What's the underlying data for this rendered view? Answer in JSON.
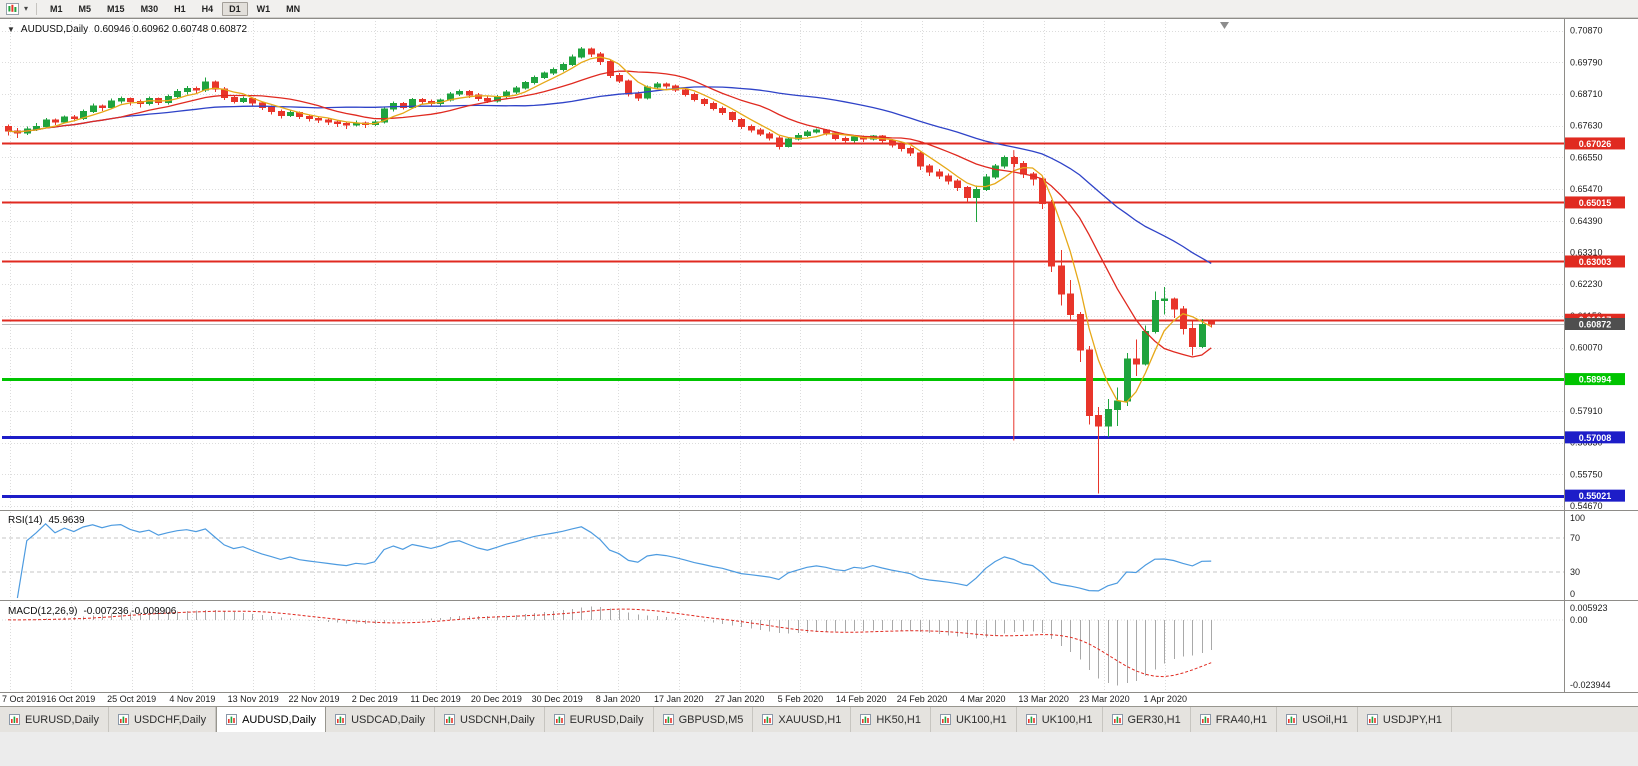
{
  "toolbar": {
    "timeframes": [
      "M1",
      "M5",
      "M15",
      "M30",
      "H1",
      "H4",
      "D1",
      "W1",
      "MN"
    ],
    "active_timeframe": "D1"
  },
  "chart": {
    "title": "AUDUSD,Daily",
    "ohlc_text": "0.60946 0.60962 0.60748 0.60872"
  },
  "rsi_panel": {
    "name": "RSI(14)",
    "value": "45.9639",
    "axis_labels": [
      "100",
      "70",
      "30",
      "0"
    ],
    "level_lines": [
      70,
      30
    ],
    "line_color": "#4d9be0"
  },
  "macd_panel": {
    "name": "MACD(12,26,9)",
    "values": "-0.007236 -0.009906",
    "axis_top": "0.005923",
    "axis_zero": "0.00",
    "axis_bottom": "-0.023944",
    "hist_color": "#a9a9a9",
    "signal_color": "#e02a20"
  },
  "active_tab_index": 2,
  "tabs": [
    {
      "label": "EURUSD,Daily"
    },
    {
      "label": "USDCHF,Daily"
    },
    {
      "label": "AUDUSD,Daily"
    },
    {
      "label": "USDCAD,Daily"
    },
    {
      "label": "USDCNH,Daily"
    },
    {
      "label": "EURUSD,Daily"
    },
    {
      "label": "GBPUSD,M5"
    },
    {
      "label": "XAUUSD,H1"
    },
    {
      "label": "HK50,H1"
    },
    {
      "label": "UK100,H1"
    },
    {
      "label": "UK100,H1"
    },
    {
      "label": "GER30,H1"
    },
    {
      "label": "FRA40,H1"
    },
    {
      "label": "USOil,H1"
    },
    {
      "label": "USDJPY,H1"
    }
  ],
  "chart_data": {
    "type": "candlestick",
    "title": "AUDUSD,Daily",
    "symbol": "AUDUSD",
    "period": "Daily",
    "ylim": [
      0.546,
      0.712
    ],
    "up_color": "#1fa33e",
    "down_color": "#e8352a",
    "grid_color": "#dcdcdc",
    "price_axis_labels": [
      "0.70870",
      "0.69790",
      "0.68710",
      "0.67630",
      "0.66550",
      "0.65470",
      "0.64390",
      "0.63310",
      "0.62230",
      "0.61150",
      "0.60070",
      "0.58990",
      "0.57910",
      "0.56830",
      "0.55750",
      "0.54670"
    ],
    "x_labels": [
      "7 Oct 2019",
      "16 Oct 2019",
      "25 Oct 2019",
      "4 Nov 2019",
      "13 Nov 2019",
      "22 Nov 2019",
      "2 Dec 2019",
      "11 Dec 2019",
      "20 Dec 2019",
      "30 Dec 2019",
      "8 Jan 2020",
      "17 Jan 2020",
      "27 Jan 2020",
      "5 Feb 2020",
      "14 Feb 2020",
      "24 Feb 2020",
      "4 Mar 2020",
      "13 Mar 2020",
      "23 Mar 2020",
      "1 Apr 2020"
    ],
    "levels": [
      {
        "label": "0.67026",
        "value": 0.67026,
        "color": "#e02a20",
        "width": 2
      },
      {
        "label": "0.65015",
        "value": 0.65015,
        "color": "#e02a20",
        "width": 2
      },
      {
        "label": "0.63003",
        "value": 0.63003,
        "color": "#e02a20",
        "width": 2
      },
      {
        "label": "0.61017",
        "value": 0.61017,
        "color": "#e02a20",
        "width": 2
      },
      {
        "label": "0.58994",
        "value": 0.58994,
        "color": "#00c400",
        "width": 3
      },
      {
        "label": "0.57008",
        "value": 0.57008,
        "color": "#1d1dc8",
        "width": 3
      },
      {
        "label": "0.55021",
        "value": 0.55021,
        "color": "#1d1dc8",
        "width": 3
      }
    ],
    "current_price": {
      "label": "0.60872",
      "value": 0.60872,
      "line_color": "#bbbbbb",
      "tag_color": "#4f4f4f"
    },
    "moving_averages": [
      {
        "period": 34,
        "color": "#2f43c8"
      },
      {
        "period": 13,
        "color": "#e02a20"
      },
      {
        "period": 5,
        "color": "#e6a817"
      }
    ],
    "rsi": {
      "period": 14,
      "current": 45.9639
    },
    "macd": {
      "fast": 12,
      "slow": 26,
      "signal": 9,
      "current": -0.007236,
      "current_signal": -0.009906
    },
    "annotations": {
      "vertical_line": {
        "index": 107,
        "price_from": 0.668,
        "price_to": 0.569,
        "color": "#e8352a"
      }
    },
    "candles": [
      [
        0.676,
        0.6768,
        0.673,
        0.6745
      ],
      [
        0.6745,
        0.6755,
        0.6722,
        0.6738
      ],
      [
        0.6738,
        0.676,
        0.6732,
        0.6752
      ],
      [
        0.6752,
        0.6772,
        0.6745,
        0.676
      ],
      [
        0.676,
        0.679,
        0.6755,
        0.6782
      ],
      [
        0.6782,
        0.6788,
        0.6765,
        0.6775
      ],
      [
        0.6775,
        0.6798,
        0.677,
        0.6792
      ],
      [
        0.6792,
        0.68,
        0.6778,
        0.6788
      ],
      [
        0.6788,
        0.6818,
        0.6782,
        0.6812
      ],
      [
        0.6812,
        0.6838,
        0.6806,
        0.683
      ],
      [
        0.683,
        0.6836,
        0.6814,
        0.6825
      ],
      [
        0.6825,
        0.6855,
        0.682,
        0.6848
      ],
      [
        0.6848,
        0.6862,
        0.6838,
        0.6856
      ],
      [
        0.6856,
        0.686,
        0.6832,
        0.6845
      ],
      [
        0.6845,
        0.6852,
        0.6825,
        0.6838
      ],
      [
        0.6838,
        0.6862,
        0.6832,
        0.6855
      ],
      [
        0.6855,
        0.686,
        0.6834,
        0.6842
      ],
      [
        0.6842,
        0.687,
        0.6836,
        0.6862
      ],
      [
        0.6862,
        0.6888,
        0.6856,
        0.688
      ],
      [
        0.688,
        0.6898,
        0.687,
        0.689
      ],
      [
        0.689,
        0.6896,
        0.6872,
        0.6885
      ],
      [
        0.6885,
        0.6928,
        0.6878,
        0.6912
      ],
      [
        0.6912,
        0.6918,
        0.6878,
        0.6888
      ],
      [
        0.6888,
        0.6895,
        0.685,
        0.686
      ],
      [
        0.686,
        0.6868,
        0.6838,
        0.6845
      ],
      [
        0.6845,
        0.6862,
        0.684,
        0.6856
      ],
      [
        0.6856,
        0.686,
        0.6832,
        0.684
      ],
      [
        0.684,
        0.6846,
        0.6816,
        0.6825
      ],
      [
        0.6825,
        0.6832,
        0.6802,
        0.6812
      ],
      [
        0.6812,
        0.6818,
        0.6788,
        0.6798
      ],
      [
        0.6798,
        0.6815,
        0.6792,
        0.6808
      ],
      [
        0.6808,
        0.6812,
        0.6786,
        0.6795
      ],
      [
        0.6795,
        0.6802,
        0.6778,
        0.6788
      ],
      [
        0.6788,
        0.6795,
        0.6772,
        0.6782
      ],
      [
        0.6782,
        0.679,
        0.6766,
        0.6776
      ],
      [
        0.6776,
        0.6782,
        0.6758,
        0.677
      ],
      [
        0.677,
        0.6778,
        0.6752,
        0.6765
      ],
      [
        0.6765,
        0.678,
        0.676,
        0.6772
      ],
      [
        0.6772,
        0.6778,
        0.6756,
        0.6768
      ],
      [
        0.6768,
        0.6782,
        0.6762,
        0.6775
      ],
      [
        0.6775,
        0.6828,
        0.677,
        0.682
      ],
      [
        0.682,
        0.6846,
        0.6812,
        0.6838
      ],
      [
        0.6838,
        0.6844,
        0.6818,
        0.6826
      ],
      [
        0.6826,
        0.6858,
        0.682,
        0.6852
      ],
      [
        0.6852,
        0.6858,
        0.6835,
        0.6845
      ],
      [
        0.6845,
        0.6852,
        0.6828,
        0.6838
      ],
      [
        0.6838,
        0.6856,
        0.6832,
        0.685
      ],
      [
        0.685,
        0.6878,
        0.6845,
        0.6872
      ],
      [
        0.6872,
        0.6886,
        0.6865,
        0.688
      ],
      [
        0.688,
        0.6885,
        0.6858,
        0.6868
      ],
      [
        0.6868,
        0.6875,
        0.6848,
        0.6856
      ],
      [
        0.6856,
        0.6862,
        0.684,
        0.6848
      ],
      [
        0.6848,
        0.6868,
        0.6842,
        0.6862
      ],
      [
        0.6862,
        0.6884,
        0.6856,
        0.6878
      ],
      [
        0.6878,
        0.6898,
        0.6872,
        0.6892
      ],
      [
        0.6892,
        0.6916,
        0.6886,
        0.691
      ],
      [
        0.691,
        0.6934,
        0.6904,
        0.6928
      ],
      [
        0.6928,
        0.6948,
        0.6922,
        0.6942
      ],
      [
        0.6942,
        0.6962,
        0.6936,
        0.6955
      ],
      [
        0.6955,
        0.6978,
        0.6948,
        0.6972
      ],
      [
        0.6972,
        0.7005,
        0.6966,
        0.6998
      ],
      [
        0.6998,
        0.7032,
        0.6992,
        0.7025
      ],
      [
        0.7025,
        0.703,
        0.6998,
        0.7008
      ],
      [
        0.7008,
        0.7015,
        0.697,
        0.6982
      ],
      [
        0.6982,
        0.6988,
        0.6925,
        0.6935
      ],
      [
        0.6935,
        0.6942,
        0.6908,
        0.6915
      ],
      [
        0.6915,
        0.692,
        0.6862,
        0.6872
      ],
      [
        0.6872,
        0.688,
        0.6848,
        0.6858
      ],
      [
        0.6858,
        0.69,
        0.6852,
        0.6895
      ],
      [
        0.6895,
        0.6912,
        0.6888,
        0.6905
      ],
      [
        0.6905,
        0.691,
        0.689,
        0.6898
      ],
      [
        0.6898,
        0.6904,
        0.6878,
        0.6885
      ],
      [
        0.6885,
        0.6892,
        0.6862,
        0.687
      ],
      [
        0.687,
        0.6876,
        0.6845,
        0.6852
      ],
      [
        0.6852,
        0.6858,
        0.683,
        0.6838
      ],
      [
        0.6838,
        0.6845,
        0.6815,
        0.6822
      ],
      [
        0.6822,
        0.6828,
        0.68,
        0.6808
      ],
      [
        0.6808,
        0.6812,
        0.6775,
        0.6785
      ],
      [
        0.6785,
        0.679,
        0.6752,
        0.676
      ],
      [
        0.676,
        0.6768,
        0.674,
        0.6748
      ],
      [
        0.6748,
        0.6755,
        0.6728,
        0.6735
      ],
      [
        0.6735,
        0.6742,
        0.6712,
        0.6722
      ],
      [
        0.6722,
        0.6728,
        0.6682,
        0.6692
      ],
      [
        0.6692,
        0.6722,
        0.6688,
        0.6718
      ],
      [
        0.6718,
        0.6738,
        0.6712,
        0.673
      ],
      [
        0.673,
        0.6748,
        0.6724,
        0.6742
      ],
      [
        0.6742,
        0.6754,
        0.6736,
        0.6748
      ],
      [
        0.6748,
        0.6752,
        0.673,
        0.6738
      ],
      [
        0.6738,
        0.6744,
        0.6712,
        0.672
      ],
      [
        0.672,
        0.6726,
        0.6702,
        0.6712
      ],
      [
        0.6712,
        0.673,
        0.6706,
        0.6725
      ],
      [
        0.6725,
        0.673,
        0.6708,
        0.6718
      ],
      [
        0.6718,
        0.6732,
        0.6712,
        0.6728
      ],
      [
        0.6728,
        0.6732,
        0.6702,
        0.6712
      ],
      [
        0.6712,
        0.6718,
        0.6688,
        0.6698
      ],
      [
        0.6698,
        0.6704,
        0.6675,
        0.6685
      ],
      [
        0.6685,
        0.6692,
        0.666,
        0.667
      ],
      [
        0.667,
        0.6675,
        0.6612,
        0.6625
      ],
      [
        0.6625,
        0.6632,
        0.6592,
        0.6605
      ],
      [
        0.6605,
        0.6615,
        0.6582,
        0.6592
      ],
      [
        0.6592,
        0.66,
        0.6562,
        0.6575
      ],
      [
        0.6575,
        0.6582,
        0.654,
        0.6552
      ],
      [
        0.6552,
        0.6558,
        0.6502,
        0.6518
      ],
      [
        0.6518,
        0.656,
        0.6435,
        0.6545
      ],
      [
        0.6545,
        0.6598,
        0.654,
        0.6588
      ],
      [
        0.6588,
        0.6632,
        0.6582,
        0.6625
      ],
      [
        0.6625,
        0.6662,
        0.6618,
        0.6655
      ],
      [
        0.6655,
        0.666,
        0.6622,
        0.6635
      ],
      [
        0.6635,
        0.6642,
        0.6585,
        0.6598
      ],
      [
        0.6598,
        0.6605,
        0.656,
        0.6582
      ],
      [
        0.6582,
        0.6588,
        0.648,
        0.6498
      ],
      [
        0.6498,
        0.651,
        0.6265,
        0.6285
      ],
      [
        0.6285,
        0.634,
        0.615,
        0.619
      ],
      [
        0.619,
        0.6238,
        0.6095,
        0.612
      ],
      [
        0.612,
        0.6128,
        0.5958,
        0.5998
      ],
      [
        0.5998,
        0.6012,
        0.5745,
        0.5775
      ],
      [
        0.5775,
        0.5805,
        0.551,
        0.574
      ],
      [
        0.574,
        0.5832,
        0.5702,
        0.5795
      ],
      [
        0.5795,
        0.587,
        0.574,
        0.5825
      ],
      [
        0.5825,
        0.5988,
        0.5808,
        0.5968
      ],
      [
        0.5968,
        0.6035,
        0.591,
        0.595
      ],
      [
        0.595,
        0.6082,
        0.5945,
        0.6062
      ],
      [
        0.6062,
        0.6198,
        0.6055,
        0.6168
      ],
      [
        0.6168,
        0.6214,
        0.612,
        0.6172
      ],
      [
        0.6172,
        0.6178,
        0.6108,
        0.6138
      ],
      [
        0.6138,
        0.6148,
        0.6052,
        0.6072
      ],
      [
        0.6072,
        0.6095,
        0.598,
        0.601
      ],
      [
        0.601,
        0.6105,
        0.6005,
        0.6085
      ],
      [
        0.60946,
        0.60962,
        0.60748,
        0.60872
      ]
    ]
  }
}
